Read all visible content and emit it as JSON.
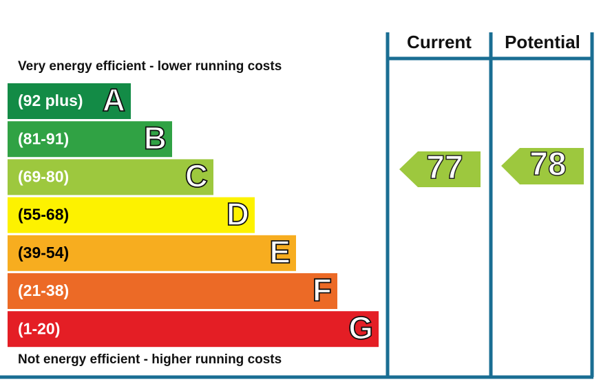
{
  "header": {
    "current": "Current",
    "potential": "Potential"
  },
  "top_note": "Very energy efficient - lower running costs",
  "bottom_note": "Not energy efficient - higher running costs",
  "bands": [
    {
      "range": "(92 plus)",
      "letter": "A",
      "color": "#138b46",
      "text_color": "#ffffff"
    },
    {
      "range": "(81-91)",
      "letter": "B",
      "color": "#30a244",
      "text_color": "#ffffff"
    },
    {
      "range": "(69-80)",
      "letter": "C",
      "color": "#9dc83e",
      "text_color": "#ffffff"
    },
    {
      "range": "(55-68)",
      "letter": "D",
      "color": "#fdf200",
      "text_color": "#000000"
    },
    {
      "range": "(39-54)",
      "letter": "E",
      "color": "#f7ad1f",
      "text_color": "#000000"
    },
    {
      "range": "(21-38)",
      "letter": "F",
      "color": "#ec6a26",
      "text_color": "#ffffff"
    },
    {
      "range": "(1-20)",
      "letter": "G",
      "color": "#e41e25",
      "text_color": "#ffffff"
    }
  ],
  "ratings": {
    "current": 77,
    "potential": 78,
    "color": "#9dc83e"
  }
}
